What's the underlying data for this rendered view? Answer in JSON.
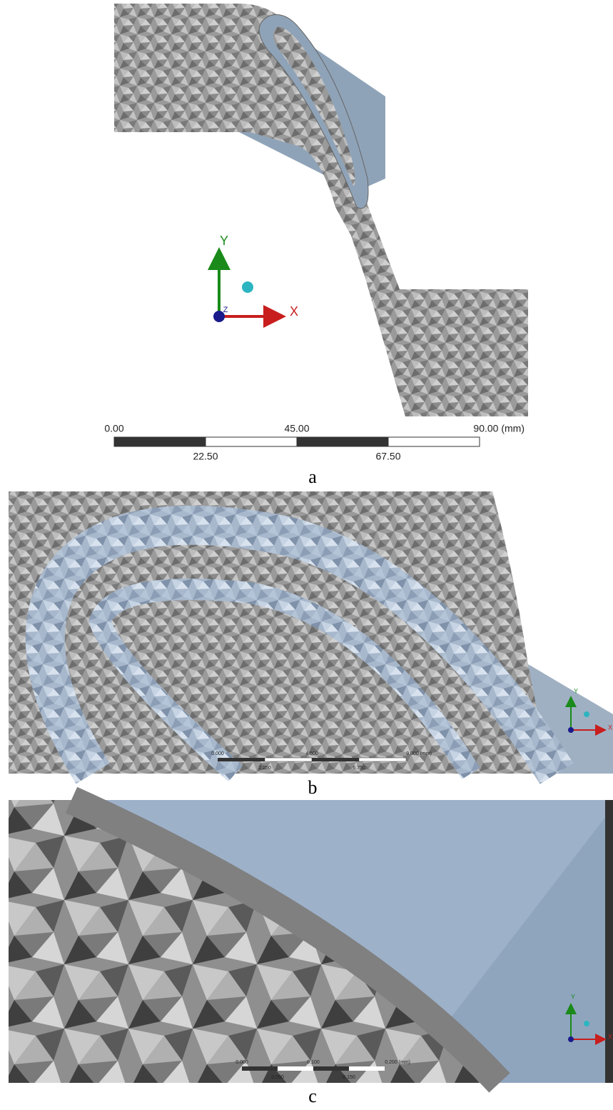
{
  "panels": [
    {
      "label": "a",
      "triad": {
        "y": "Y",
        "x": "X",
        "z": "Z"
      },
      "scale_bar": {
        "top": [
          "0.00",
          "45.00",
          "90.00 (mm)"
        ],
        "bottom": [
          "22.50",
          "67.50"
        ]
      }
    },
    {
      "label": "b",
      "triad": {
        "y": "Y",
        "x": "X"
      },
      "scale_bar": {
        "top": [
          "0.000",
          "4.500",
          "9.000 (mm)"
        ],
        "bottom": [
          "2.250",
          "6.750"
        ]
      }
    },
    {
      "label": "c",
      "triad": {
        "y": "Y",
        "x": "X"
      },
      "scale_bar": {
        "top": [
          "0.000",
          "0.100",
          "0.200 (mm)"
        ],
        "bottom": [
          "0.050",
          "0.150"
        ]
      }
    }
  ]
}
